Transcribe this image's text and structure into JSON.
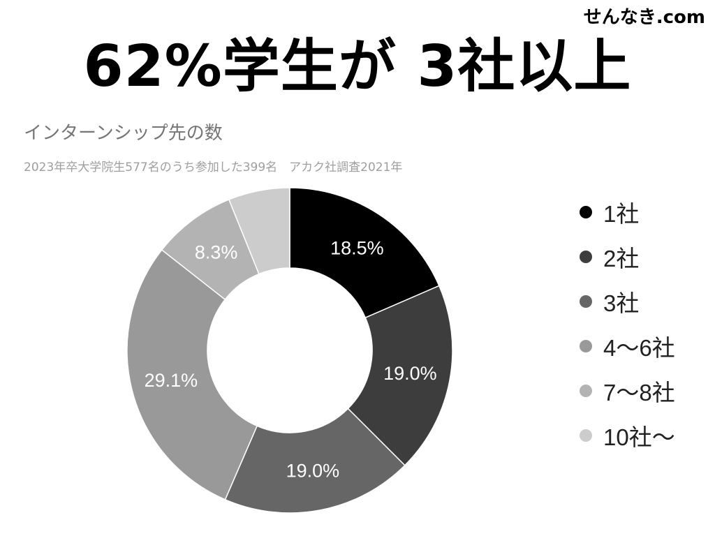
{
  "header": {
    "headline": "62%学生が 3社以上",
    "site": "せんなき.com"
  },
  "chart_data": {
    "type": "pie",
    "donut": true,
    "title": "インターンシップ先の数",
    "subtitle": "2023年卒大学院生577名のうち参加した399名　アカク社調査2021年",
    "categories": [
      "1社",
      "2社",
      "3社",
      "4〜6社",
      "7〜8社",
      "10社〜"
    ],
    "values": [
      18.5,
      19.0,
      19.0,
      29.1,
      8.3,
      6.1
    ],
    "data_labels": [
      "18.5%",
      "19.0%",
      "19.0%",
      "29.1%",
      "8.3%",
      ""
    ],
    "colors": [
      "#000000",
      "#3d3d3d",
      "#666666",
      "#999999",
      "#b3b3b3",
      "#cccccc"
    ],
    "legend_position": "right"
  }
}
